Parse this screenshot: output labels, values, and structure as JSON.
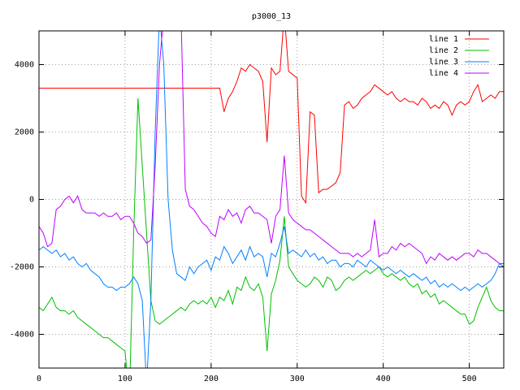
{
  "chart_data": {
    "type": "line",
    "title": "p3000_13",
    "x": [
      0,
      5,
      10,
      15,
      20,
      25,
      30,
      35,
      40,
      45,
      50,
      55,
      60,
      65,
      70,
      75,
      80,
      85,
      90,
      95,
      100,
      105,
      110,
      115,
      120,
      125,
      130,
      135,
      140,
      145,
      150,
      155,
      160,
      165,
      170,
      175,
      180,
      185,
      190,
      195,
      200,
      205,
      210,
      215,
      220,
      225,
      230,
      235,
      240,
      245,
      250,
      255,
      260,
      265,
      270,
      275,
      280,
      285,
      290,
      295,
      300,
      305,
      310,
      315,
      320,
      325,
      330,
      335,
      340,
      345,
      350,
      355,
      360,
      365,
      370,
      375,
      380,
      385,
      390,
      395,
      400,
      405,
      410,
      415,
      420,
      425,
      430,
      435,
      440,
      445,
      450,
      455,
      460,
      465,
      470,
      475,
      480,
      485,
      490,
      495,
      500,
      505,
      510,
      515,
      520,
      525,
      530,
      535,
      540
    ],
    "series": [
      {
        "name": "line 1",
        "color": "#ff0000",
        "values": [
          3300,
          3300,
          3300,
          3300,
          3300,
          3300,
          3300,
          3300,
          3300,
          3300,
          3300,
          3300,
          3300,
          3300,
          3300,
          3300,
          3300,
          3300,
          3300,
          3300,
          3300,
          3300,
          3300,
          3300,
          3300,
          3300,
          3300,
          3300,
          3300,
          3300,
          3300,
          3300,
          3300,
          3300,
          3300,
          3300,
          3300,
          3300,
          3300,
          3300,
          3300,
          3300,
          3300,
          2600,
          3000,
          3200,
          3500,
          3900,
          3800,
          4000,
          3900,
          3800,
          3500,
          1700,
          3900,
          3700,
          3800,
          5500,
          3800,
          3700,
          3600,
          100,
          -100,
          2600,
          2500,
          200,
          300,
          300,
          400,
          500,
          800,
          2800,
          2900,
          2700,
          2800,
          3000,
          3100,
          3200,
          3400,
          3300,
          3200,
          3100,
          3200,
          3000,
          2900,
          3000,
          2900,
          2900,
          2800,
          3000,
          2900,
          2700,
          2800,
          2700,
          2900,
          2800,
          2500,
          2800,
          2900,
          2800,
          2900,
          3200,
          3400,
          2900,
          3000,
          3100,
          3000,
          3200,
          3200
        ]
      },
      {
        "name": "line 2",
        "color": "#00c000",
        "values": [
          -3200,
          -3300,
          -3100,
          -2900,
          -3200,
          -3300,
          -3300,
          -3400,
          -3300,
          -3500,
          -3600,
          -3700,
          -3800,
          -3900,
          -4000,
          -4100,
          -4100,
          -4200,
          -4300,
          -4400,
          -4500,
          -6000,
          -1000,
          3000,
          1000,
          -1000,
          -3000,
          -3600,
          -3700,
          -3600,
          -3500,
          -3400,
          -3300,
          -3200,
          -3300,
          -3100,
          -3000,
          -3100,
          -3000,
          -3100,
          -2900,
          -3200,
          -2900,
          -3000,
          -2700,
          -3100,
          -2600,
          -2700,
          -2300,
          -2600,
          -2700,
          -2500,
          -2900,
          -4500,
          -2800,
          -2400,
          -1800,
          -500,
          -2000,
          -2200,
          -2400,
          -2500,
          -2600,
          -2500,
          -2300,
          -2400,
          -2600,
          -2300,
          -2400,
          -2700,
          -2600,
          -2400,
          -2300,
          -2400,
          -2300,
          -2200,
          -2100,
          -2200,
          -2100,
          -2000,
          -2200,
          -2300,
          -2200,
          -2300,
          -2400,
          -2300,
          -2500,
          -2600,
          -2500,
          -2800,
          -2700,
          -2900,
          -2800,
          -3100,
          -3000,
          -3100,
          -3200,
          -3300,
          -3400,
          -3400,
          -3700,
          -3600,
          -3200,
          -2900,
          -2600,
          -3000,
          -3200,
          -3300,
          -3300
        ]
      },
      {
        "name": "line 3",
        "color": "#0080ff",
        "values": [
          -1500,
          -1400,
          -1500,
          -1600,
          -1500,
          -1700,
          -1600,
          -1800,
          -1700,
          -1900,
          -2000,
          -1900,
          -2100,
          -2200,
          -2300,
          -2500,
          -2600,
          -2600,
          -2700,
          -2600,
          -2600,
          -2500,
          -2300,
          -2500,
          -3000,
          -5500,
          -3000,
          2000,
          5500,
          4000,
          0,
          -1500,
          -2200,
          -2300,
          -2400,
          -2000,
          -2200,
          -2000,
          -1900,
          -1800,
          -2100,
          -1700,
          -1800,
          -1400,
          -1600,
          -1900,
          -1700,
          -1500,
          -1800,
          -1400,
          -1700,
          -1600,
          -1700,
          -2300,
          -1600,
          -1700,
          -1300,
          -800,
          -1600,
          -1500,
          -1600,
          -1700,
          -1500,
          -1700,
          -1600,
          -1800,
          -1700,
          -1900,
          -1800,
          -1800,
          -2000,
          -1900,
          -1900,
          -2000,
          -1800,
          -1900,
          -2000,
          -1800,
          -1900,
          -2000,
          -2100,
          -2000,
          -2100,
          -2200,
          -2100,
          -2200,
          -2300,
          -2200,
          -2300,
          -2400,
          -2300,
          -2500,
          -2400,
          -2600,
          -2500,
          -2600,
          -2500,
          -2600,
          -2700,
          -2600,
          -2700,
          -2600,
          -2500,
          -2600,
          -2500,
          -2400,
          -2200,
          -1900,
          -2000
        ]
      },
      {
        "name": "line 4",
        "color": "#c000ff",
        "values": [
          -800,
          -1000,
          -1400,
          -1300,
          -300,
          -200,
          0,
          100,
          -100,
          100,
          -300,
          -400,
          -400,
          -400,
          -500,
          -400,
          -500,
          -500,
          -400,
          -600,
          -500,
          -500,
          -700,
          -1000,
          -1100,
          -1300,
          -1200,
          1000,
          4000,
          5500,
          5500,
          5500,
          5500,
          5500,
          300,
          -200,
          -300,
          -500,
          -700,
          -800,
          -1000,
          -1100,
          -500,
          -600,
          -300,
          -500,
          -400,
          -700,
          -300,
          -200,
          -400,
          -400,
          -500,
          -600,
          -1300,
          -500,
          -300,
          1300,
          -400,
          -600,
          -700,
          -800,
          -900,
          -900,
          -1000,
          -1100,
          -1200,
          -1300,
          -1400,
          -1500,
          -1600,
          -1600,
          -1600,
          -1700,
          -1600,
          -1700,
          -1600,
          -1500,
          -600,
          -1700,
          -1600,
          -1600,
          -1400,
          -1500,
          -1300,
          -1400,
          -1300,
          -1400,
          -1500,
          -1600,
          -1900,
          -1700,
          -1800,
          -1600,
          -1700,
          -1800,
          -1700,
          -1800,
          -1700,
          -1600,
          -1600,
          -1700,
          -1500,
          -1600,
          -1600,
          -1700,
          -1800,
          -1900,
          -1900
        ]
      }
    ],
    "xlim": [
      0,
      540
    ],
    "ylim": [
      -5000,
      5000
    ],
    "xticks": [
      0,
      100,
      200,
      300,
      400,
      500
    ],
    "yticks": [
      -4000,
      -2000,
      0,
      2000,
      4000
    ],
    "grid": true,
    "legend": "top-right"
  }
}
